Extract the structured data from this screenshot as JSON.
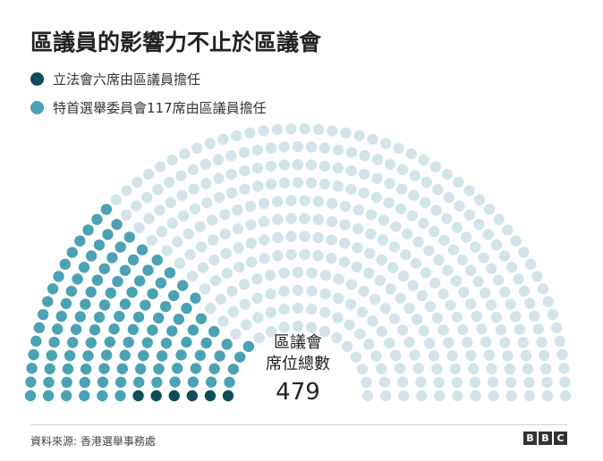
{
  "title": "區議員的影響力不止於區議會",
  "legend": [
    {
      "label": "立法會六席由區議員擔任",
      "color": "#0e4c5c"
    },
    {
      "label": "特首選舉委員會117席由區議員擔任",
      "color": "#4aa2b4"
    }
  ],
  "center": {
    "line1": "區議會",
    "line2": "席位總數",
    "total": "479"
  },
  "source": "資料來源: 香港選舉事務處",
  "logo": [
    "B",
    "B",
    "C"
  ],
  "colors": {
    "legco": "#0e4c5c",
    "election_committee": "#4aa2b4",
    "other": "#d3e4e8"
  },
  "chart_data": {
    "type": "parliament",
    "total": 479,
    "series": [
      {
        "name": "立法會六席由區議員擔任",
        "value": 6,
        "color": "#0e4c5c"
      },
      {
        "name": "特首選舉委員會117席由區議員擔任",
        "value": 117,
        "color": "#4aa2b4"
      },
      {
        "value": 356,
        "color": "#d3e4e8"
      }
    ]
  }
}
